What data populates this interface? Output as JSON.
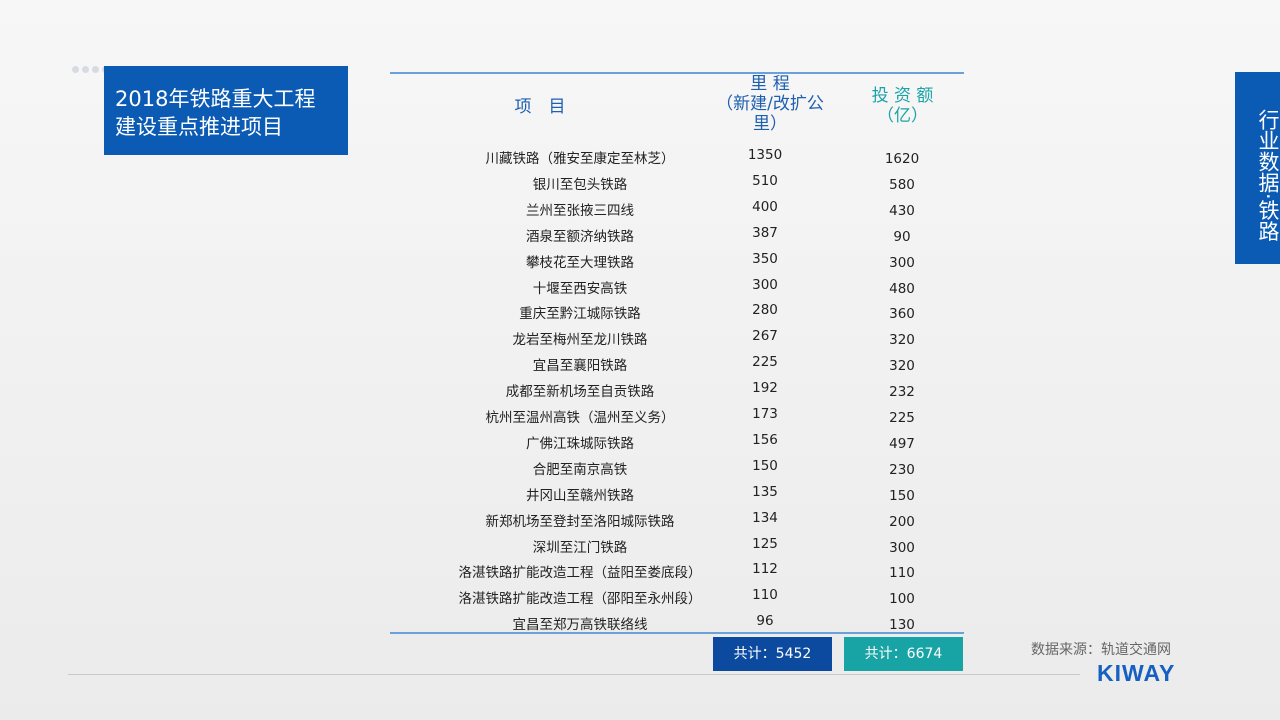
{
  "title": "2018年铁路重大工程建设重点推进项目",
  "title_lines": [
    "2018年铁路重大工程",
    "建设重点推进项目"
  ],
  "side_tab": "行业数据·铁路",
  "headers": {
    "project": "项　目",
    "mileage_lines": [
      "里 程",
      "（新建/改扩公",
      "里）"
    ],
    "investment_lines": [
      "投 资 额",
      "（亿）"
    ]
  },
  "rows": [
    {
      "name": "川藏铁路（雅安至康定至林芝）",
      "mileage": "1350",
      "investment": "1620"
    },
    {
      "name": "银川至包头铁路",
      "mileage": "510",
      "investment": "580"
    },
    {
      "name": "兰州至张掖三四线",
      "mileage": "400",
      "investment": "430"
    },
    {
      "name": "酒泉至额济纳铁路",
      "mileage": "387",
      "investment": "90"
    },
    {
      "name": "攀枝花至大理铁路",
      "mileage": "350",
      "investment": "300"
    },
    {
      "name": "十堰至西安高铁",
      "mileage": "300",
      "investment": "480"
    },
    {
      "name": "重庆至黔江城际铁路",
      "mileage": "280",
      "investment": "360"
    },
    {
      "name": "龙岩至梅州至龙川铁路",
      "mileage": "267",
      "investment": "320"
    },
    {
      "name": "宜昌至襄阳铁路",
      "mileage": "225",
      "investment": "320"
    },
    {
      "name": "成都至新机场至自贡铁路",
      "mileage": "192",
      "investment": "232"
    },
    {
      "name": "杭州至温州高铁（温州至义务）",
      "mileage": "173",
      "investment": "225"
    },
    {
      "name": "广佛江珠城际铁路",
      "mileage": "156",
      "investment": "497"
    },
    {
      "name": "合肥至南京高铁",
      "mileage": "150",
      "investment": "230"
    },
    {
      "name": "井冈山至赣州铁路",
      "mileage": "135",
      "investment": "150"
    },
    {
      "name": "新郑机场至登封至洛阳城际铁路",
      "mileage": "134",
      "investment": "200"
    },
    {
      "name": "深圳至江门铁路",
      "mileage": "125",
      "investment": "300"
    },
    {
      "name": "洛湛铁路扩能改造工程（益阳至娄底段）",
      "mileage": "112",
      "investment": "110"
    },
    {
      "name": "洛湛铁路扩能改造工程（邵阳至永州段）",
      "mileage": "110",
      "investment": "100"
    },
    {
      "name": "宜昌至郑万高铁联络线",
      "mileage": "96",
      "investment": "130"
    }
  ],
  "totals": {
    "mileage": "共计：5452",
    "investment": "共计：6674"
  },
  "source": "数据来源：轨道交通网",
  "logo": "KIWAY",
  "colors": {
    "primary": "#0b5bb5",
    "teal": "#18a3a5",
    "dark_blue": "#0c4aa0"
  }
}
